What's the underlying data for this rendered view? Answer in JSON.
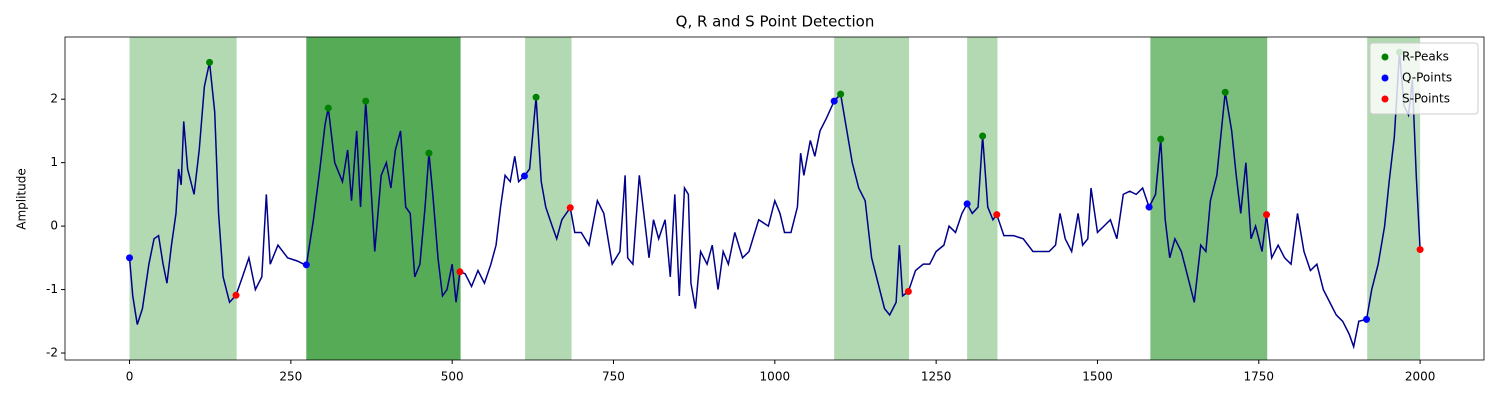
{
  "chart_data": {
    "type": "line",
    "title": "Q, R and S Point Detection",
    "ylabel": "Amplitude",
    "color": "#00008b",
    "x": [
      0,
      5,
      12,
      20,
      30,
      38,
      45,
      52,
      58,
      65,
      72,
      76,
      80,
      84,
      90,
      100,
      108,
      116,
      124,
      132,
      138,
      145,
      155,
      165,
      175,
      185,
      195,
      205,
      212,
      218,
      230,
      245,
      260,
      274,
      285,
      295,
      303,
      308,
      318,
      330,
      338,
      344,
      352,
      358,
      366,
      372,
      380,
      390,
      398,
      405,
      412,
      420,
      428,
      435,
      442,
      450,
      458,
      464,
      470,
      478,
      485,
      492,
      500,
      506,
      512,
      520,
      530,
      540,
      550,
      560,
      568,
      575,
      582,
      590,
      597,
      603,
      612,
      620,
      630,
      638,
      645,
      655,
      662,
      670,
      683,
      690,
      700,
      712,
      725,
      735,
      748,
      760,
      768,
      772,
      780,
      790,
      797,
      805,
      812,
      820,
      830,
      838,
      845,
      852,
      860,
      866,
      870,
      877,
      885,
      895,
      903,
      912,
      920,
      928,
      938,
      950,
      960,
      975,
      990,
      1000,
      1008,
      1015,
      1025,
      1035,
      1040,
      1045,
      1055,
      1062,
      1070,
      1080,
      1092,
      1102,
      1110,
      1120,
      1130,
      1140,
      1150,
      1160,
      1170,
      1178,
      1188,
      1193,
      1198,
      1207,
      1218,
      1230,
      1240,
      1250,
      1262,
      1270,
      1280,
      1290,
      1298,
      1306,
      1315,
      1322,
      1330,
      1338,
      1344,
      1355,
      1370,
      1385,
      1400,
      1412,
      1425,
      1435,
      1442,
      1450,
      1460,
      1470,
      1477,
      1485,
      1490,
      1500,
      1510,
      1520,
      1530,
      1540,
      1550,
      1560,
      1570,
      1580,
      1590,
      1598,
      1605,
      1612,
      1620,
      1630,
      1640,
      1650,
      1660,
      1668,
      1675,
      1685,
      1698,
      1708,
      1715,
      1722,
      1730,
      1738,
      1745,
      1755,
      1762,
      1770,
      1780,
      1790,
      1800,
      1810,
      1820,
      1830,
      1840,
      1850,
      1860,
      1870,
      1880,
      1890,
      1897,
      1905,
      1917,
      1925,
      1935,
      1945,
      1952,
      1960,
      1968,
      1975,
      1982,
      1988,
      1994,
      2000
    ],
    "values": [
      -0.5,
      -1.1,
      -1.55,
      -1.3,
      -0.6,
      -0.2,
      -0.15,
      -0.6,
      -0.9,
      -0.3,
      0.2,
      0.9,
      0.65,
      1.65,
      0.9,
      0.5,
      1.2,
      2.2,
      2.58,
      1.8,
      0.2,
      -0.8,
      -1.2,
      -1.09,
      -0.8,
      -0.5,
      -1.0,
      -0.8,
      0.5,
      -0.6,
      -0.3,
      -0.5,
      -0.55,
      -0.62,
      0.1,
      0.9,
      1.6,
      1.86,
      1.0,
      0.7,
      1.2,
      0.4,
      1.5,
      0.3,
      1.97,
      1.0,
      -0.4,
      0.8,
      1.0,
      0.6,
      1.2,
      1.5,
      0.3,
      0.2,
      -0.8,
      -0.6,
      0.3,
      1.15,
      0.5,
      -0.5,
      -1.1,
      -1.0,
      -0.6,
      -1.2,
      -0.72,
      -0.75,
      -0.95,
      -0.7,
      -0.9,
      -0.6,
      -0.3,
      0.3,
      0.8,
      0.7,
      1.1,
      0.7,
      0.79,
      0.9,
      2.03,
      0.7,
      0.3,
      0,
      -0.2,
      0.1,
      0.29,
      -0.1,
      -0.1,
      -0.3,
      0.4,
      0.2,
      -0.6,
      -0.4,
      0.8,
      -0.5,
      -0.6,
      0.8,
      0.2,
      -0.5,
      0.1,
      -0.2,
      0.1,
      -0.8,
      0.5,
      -1.1,
      0.6,
      0.5,
      -0.9,
      -1.3,
      -0.4,
      -0.6,
      -0.3,
      -1.0,
      -0.4,
      -0.6,
      -0.1,
      -0.5,
      -0.4,
      0.1,
      0.0,
      0.4,
      0.2,
      -0.1,
      -0.1,
      0.3,
      1.15,
      0.8,
      1.35,
      1.1,
      1.5,
      1.7,
      1.97,
      2.08,
      1.6,
      1.0,
      0.6,
      0.4,
      -0.5,
      -0.9,
      -1.3,
      -1.4,
      -1.2,
      -0.3,
      -1.1,
      -1.03,
      -0.7,
      -0.6,
      -0.6,
      -0.4,
      -0.3,
      0.0,
      -0.1,
      0.2,
      0.35,
      0.2,
      0.3,
      1.42,
      0.3,
      0.1,
      0.18,
      -0.15,
      -0.15,
      -0.2,
      -0.4,
      -0.4,
      -0.4,
      -0.3,
      0.2,
      -0.2,
      -0.4,
      0.2,
      -0.3,
      -0.2,
      0.6,
      -0.1,
      0.0,
      0.1,
      -0.2,
      0.5,
      0.55,
      0.5,
      0.6,
      0.3,
      0.5,
      1.37,
      0.1,
      -0.5,
      -0.2,
      -0.4,
      -0.8,
      -1.2,
      -0.3,
      -0.4,
      0.4,
      0.8,
      2.11,
      1.5,
      0.8,
      0.2,
      1.0,
      -0.2,
      0.0,
      -0.4,
      0.18,
      -0.5,
      -0.3,
      -0.5,
      -0.6,
      0.2,
      -0.4,
      -0.7,
      -0.6,
      -1.0,
      -1.2,
      -1.4,
      -1.5,
      -1.7,
      -1.9,
      -1.5,
      -1.47,
      -1.0,
      -0.6,
      0.0,
      0.7,
      1.4,
      2.74,
      1.9,
      1.75,
      2.3,
      0.8,
      -0.37
    ],
    "span_color": "#008000",
    "spans": [
      {
        "start": 0,
        "end": 166
      },
      {
        "start": 274,
        "end": 513
      },
      {
        "start": 274,
        "end": 513
      },
      {
        "start": 274,
        "end": 513
      },
      {
        "start": 613,
        "end": 685
      },
      {
        "start": 1092,
        "end": 1208
      },
      {
        "start": 1298,
        "end": 1345
      },
      {
        "start": 1582,
        "end": 1763
      },
      {
        "start": 1582,
        "end": 1763
      },
      {
        "start": 1918,
        "end": 2000
      }
    ],
    "points": [
      {
        "name": "R-Peaks",
        "color": "#008000",
        "x": [
          124,
          308,
          366,
          464,
          630,
          1102,
          1322,
          1598,
          1698,
          1968
        ],
        "values": [
          2.58,
          1.86,
          1.97,
          1.15,
          2.03,
          2.08,
          1.42,
          1.37,
          2.11,
          2.74
        ]
      },
      {
        "name": "Q-Points",
        "color": "#0000ff",
        "x": [
          0,
          274,
          612,
          1092,
          1298,
          1580,
          1917
        ],
        "values": [
          -0.5,
          -0.61,
          0.79,
          1.97,
          0.35,
          0.3,
          -1.47
        ]
      },
      {
        "name": "S-Points",
        "color": "#ff0000",
        "x": [
          165,
          512,
          683,
          1207,
          1344,
          1762,
          2000
        ],
        "values": [
          -1.09,
          -0.72,
          0.29,
          -1.03,
          0.18,
          0.18,
          -0.37
        ]
      }
    ],
    "xlim": [
      -100,
      2099
    ],
    "xticks": [
      0,
      250,
      500,
      750,
      1000,
      1250,
      1500,
      1750,
      2000
    ],
    "ylim": [
      -2.11,
      2.98
    ],
    "yticks": [
      -2,
      -1,
      0,
      1,
      2
    ],
    "legend": "upper right"
  }
}
